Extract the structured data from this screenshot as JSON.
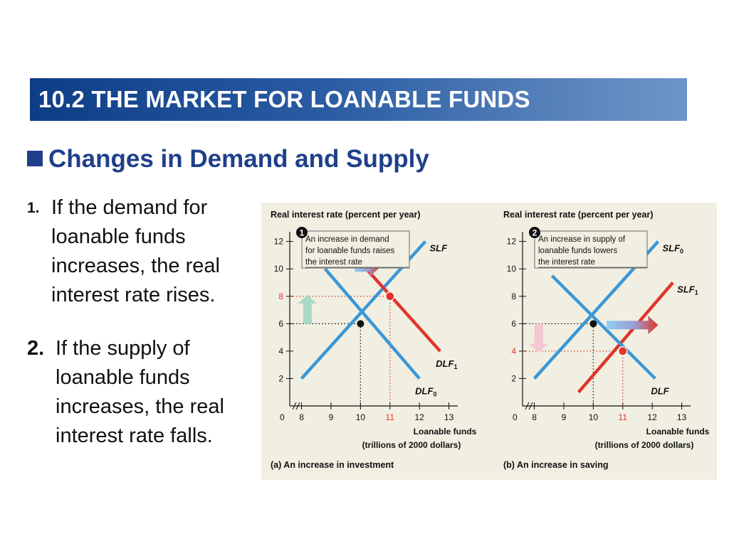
{
  "slide": {
    "title": "10.2 THE MARKET FOR LOANABLE FUNDS",
    "subtitle": "Changes in Demand and Supply",
    "points": [
      {
        "number": "1.",
        "text": "If the demand for loanable funds increases, the real interest rate rises."
      },
      {
        "number": "2.",
        "text": "If the supply of loanable funds increases, the real interest rate falls."
      }
    ]
  },
  "chart_data": [
    {
      "type": "line",
      "title": "(a) An increase in investment",
      "ylabel": "Real interest rate (percent per year)",
      "xlabel_line1": "Loanable funds",
      "xlabel_line2": "(trillions of 2000 dollars)",
      "x_ticks": [
        "8",
        "9",
        "10",
        "11",
        "12",
        "13"
      ],
      "y_ticks": [
        "2",
        "4",
        "6",
        "8",
        "10",
        "12"
      ],
      "origin_label": "0",
      "xlim": [
        7.6,
        13.3
      ],
      "ylim": [
        0,
        12.5
      ],
      "highlight_x": "11",
      "highlight_y": "8",
      "annotation_number": "1",
      "annotation": [
        "An increase in demand",
        "for loanable funds raises",
        "the interest rate"
      ],
      "series": [
        {
          "name": "SLF",
          "color": "#3b97d6",
          "x": [
            8,
            12.2
          ],
          "y": [
            2,
            12
          ]
        },
        {
          "name": "DLF",
          "sub": "0",
          "color": "#3b97d6",
          "x": [
            8.8,
            12
          ],
          "y": [
            10,
            2
          ]
        },
        {
          "name": "DLF",
          "sub": "1",
          "color": "#e0352c",
          "x": [
            10.2,
            12.7
          ],
          "y": [
            10,
            4
          ]
        }
      ],
      "points": [
        {
          "x": 10,
          "y": 6,
          "color": "#111111"
        },
        {
          "x": 11,
          "y": 8,
          "color": "#e0352c"
        }
      ],
      "shift_arrow": {
        "from": [
          9.8,
          10.1
        ],
        "to": [
          10.65,
          10.1
        ],
        "direction": "right"
      },
      "level_arrow": {
        "x": 8.2,
        "from": 6,
        "to": 8.1,
        "direction": "up",
        "color": "#a8d8c6"
      }
    },
    {
      "type": "line",
      "title": "(b) An increase in saving",
      "ylabel": "Real interest rate (percent per year)",
      "xlabel_line1": "Loanable funds",
      "xlabel_line2": "(trillions of 2000 dollars)",
      "x_ticks": [
        "8",
        "9",
        "10",
        "11",
        "12",
        "13"
      ],
      "y_ticks": [
        "2",
        "4",
        "6",
        "8",
        "10",
        "12"
      ],
      "origin_label": "0",
      "xlim": [
        7.6,
        13.3
      ],
      "ylim": [
        0,
        12.5
      ],
      "highlight_x": "11",
      "highlight_y": "4",
      "annotation_number": "2",
      "annotation": [
        "An increase in supply of",
        "loanable funds lowers",
        "the interest rate"
      ],
      "series": [
        {
          "name": "SLF",
          "sub": "0",
          "color": "#3b97d6",
          "x": [
            8,
            12.2
          ],
          "y": [
            2,
            12
          ]
        },
        {
          "name": "SLF",
          "sub": "1",
          "color": "#e0352c",
          "x": [
            9.5,
            12.7
          ],
          "y": [
            1,
            9
          ]
        },
        {
          "name": "DLF",
          "color": "#3b97d6",
          "x": [
            8.6,
            12.1
          ],
          "y": [
            9.5,
            2
          ]
        }
      ],
      "points": [
        {
          "x": 10,
          "y": 6,
          "color": "#111111"
        },
        {
          "x": 11,
          "y": 4,
          "color": "#e0352c"
        }
      ],
      "shift_arrow": {
        "from": [
          10.45,
          5.9
        ],
        "to": [
          12.2,
          5.9
        ],
        "direction": "right"
      },
      "level_arrow": {
        "x": 8.15,
        "from": 6,
        "to": 3.9,
        "direction": "down",
        "color": "#f6c6d2"
      }
    }
  ]
}
